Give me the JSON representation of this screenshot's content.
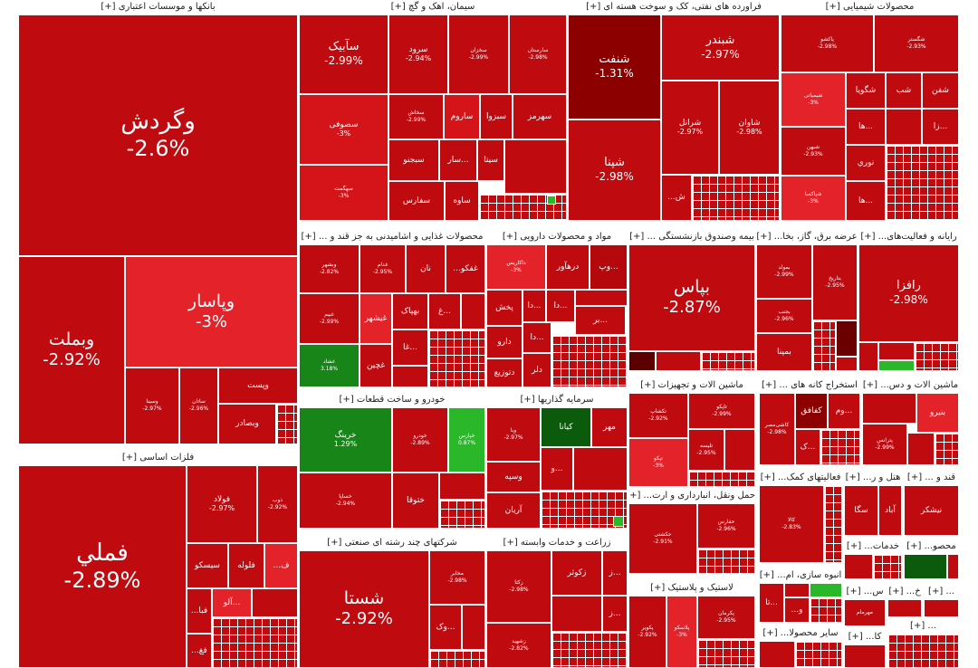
{
  "sectors": [
    {
      "title": "بانکها و موسسات اعتباری [+]",
      "tiles": [
        {
          "name": "وگردش",
          "pct": "-2.6%"
        },
        {
          "name": "وبملت",
          "pct": "-2.92%"
        },
        {
          "name": "وپاسار",
          "pct": "-3%"
        },
        {
          "name": "وسینا",
          "pct": "-2.97%"
        },
        {
          "name": "ساتان",
          "pct": "-2.96%"
        },
        {
          "name": "وپست",
          "pct": ""
        },
        {
          "name": "وبصادر",
          "pct": ""
        }
      ]
    },
    {
      "title": "فلزات اساسی [+]",
      "tiles": [
        {
          "name": "فملي",
          "pct": "-2.89%"
        },
        {
          "name": "فولاد",
          "pct": "-2.97%"
        },
        {
          "name": "ذوب",
          "pct": "-2.92%"
        },
        {
          "name": "فلوله",
          "pct": ""
        },
        {
          "name": "سیسکو",
          "pct": ""
        },
        {
          "name": "ف...",
          "pct": ""
        },
        {
          "name": "...آلو",
          "pct": ""
        },
        {
          "name": "فبا...",
          "pct": ""
        },
        {
          "name": "فغ...",
          "pct": ""
        }
      ]
    },
    {
      "title": "سیمان، اهک و گچ [+]",
      "tiles": [
        {
          "name": "سآبیک",
          "pct": "-2.99%"
        },
        {
          "name": "سرود",
          "pct": "-2.94%"
        },
        {
          "name": "سخزان",
          "pct": "-2.99%"
        },
        {
          "name": "سارستان",
          "pct": "-2.98%"
        },
        {
          "name": "سصوفی",
          "pct": "-3%"
        },
        {
          "name": "سخاش",
          "pct": "-2.99%"
        },
        {
          "name": "ساروم",
          "pct": ""
        },
        {
          "name": "سبزوا",
          "pct": ""
        },
        {
          "name": "سهرمز",
          "pct": ""
        },
        {
          "name": "سهگمت",
          "pct": "-3%"
        },
        {
          "name": "سبجنو",
          "pct": ""
        },
        {
          "name": "...سار",
          "pct": ""
        },
        {
          "name": "سیتا",
          "pct": ""
        },
        {
          "name": "سفارس",
          "pct": ""
        },
        {
          "name": "ساوه",
          "pct": ""
        }
      ]
    },
    {
      "title": "فراورده های نفتی، کک و سوخت هسته ای [+]",
      "tiles": [
        {
          "name": "شنفت",
          "pct": "-1.31%"
        },
        {
          "name": "شبندر",
          "pct": "-2.97%"
        },
        {
          "name": "شپنا",
          "pct": "-2.98%"
        },
        {
          "name": "شرانل",
          "pct": "-2.97%"
        },
        {
          "name": "شاوان",
          "pct": "-2.98%"
        },
        {
          "name": "ش...",
          "pct": ""
        }
      ]
    },
    {
      "title": "محصولات شیمیایی [+]",
      "tiles": [
        {
          "name": "پاکشو",
          "pct": "-2.98%"
        },
        {
          "name": "شگستر",
          "pct": "-2.93%"
        },
        {
          "name": "شیمیاتی",
          "pct": "-3%"
        },
        {
          "name": "شگویا",
          "pct": ""
        },
        {
          "name": "شب",
          "pct": ""
        },
        {
          "name": "شفن",
          "pct": ""
        },
        {
          "name": "...زا",
          "pct": ""
        },
        {
          "name": "...ها",
          "pct": ""
        },
        {
          "name": "نوري",
          "pct": ""
        },
        {
          "name": "...ها",
          "pct": ""
        },
        {
          "name": "شبهن",
          "pct": "-2.93%"
        },
        {
          "name": "شپاکسا",
          "pct": "-3%"
        }
      ]
    },
    {
      "title": "محصولات غذایی و اشامیدنی به جز قند و ... [+]",
      "tiles": [
        {
          "name": "وبشهر",
          "pct": "-2.82%"
        },
        {
          "name": "غدام",
          "pct": "-2.95%"
        },
        {
          "name": "نان",
          "pct": ""
        },
        {
          "name": "غفکو...",
          "pct": ""
        },
        {
          "name": "غبیم",
          "pct": "-2.99%"
        },
        {
          "name": "غیشهر",
          "pct": ""
        },
        {
          "name": "بهپاک",
          "pct": ""
        },
        {
          "name": "...غ",
          "pct": ""
        },
        {
          "name": "غشاد",
          "pct": "3.18%"
        },
        {
          "name": "غچین",
          "pct": ""
        },
        {
          "name": "...غا",
          "pct": ""
        }
      ]
    },
    {
      "title": "مواد و محصولات دارویی [+]",
      "tiles": [
        {
          "name": "داکاریس",
          "pct": "-3%"
        },
        {
          "name": "درهآور",
          "pct": ""
        },
        {
          "name": "...وپ",
          "pct": ""
        },
        {
          "name": "...دا",
          "pct": ""
        },
        {
          "name": "...بر",
          "pct": ""
        },
        {
          "name": "پخش",
          "pct": ""
        },
        {
          "name": "...دا",
          "pct": ""
        },
        {
          "name": "دلر",
          "pct": ""
        },
        {
          "name": "دارو",
          "pct": ""
        },
        {
          "name": "دتوزیع",
          "pct": ""
        },
        {
          "name": "...دا",
          "pct": ""
        }
      ]
    },
    {
      "title": "بیمه وصندوق بازنشستگی ... [+]",
      "tiles": [
        {
          "name": "بپاس",
          "pct": "-2.87%"
        }
      ]
    },
    {
      "title": "عرضه برق، گاز، بخا... [+]",
      "tiles": [
        {
          "name": "بمولد",
          "pct": "-2.99%"
        },
        {
          "name": "بتاریخ",
          "pct": "-2.95%"
        },
        {
          "name": "بجنب",
          "pct": "-2.96%"
        },
        {
          "name": "بمپنا",
          "pct": ""
        }
      ]
    },
    {
      "title": "رایانه و فعالیت‌های... [+]",
      "tiles": [
        {
          "name": "رافزا",
          "pct": "-2.98%"
        }
      ]
    },
    {
      "title": "خودرو و ساخت قطعات [+]",
      "tiles": [
        {
          "name": "خرینگ",
          "pct": "1.29%"
        },
        {
          "name": "خودرو",
          "pct": "-2.89%"
        },
        {
          "name": "خپارس",
          "pct": "0.87%"
        },
        {
          "name": "خساپا",
          "pct": "-2.94%"
        },
        {
          "name": "ختوقا",
          "pct": ""
        }
      ]
    },
    {
      "title": "سرمایه گذاریها [+]",
      "tiles": [
        {
          "name": "کیانا",
          "pct": ""
        },
        {
          "name": "مهر",
          "pct": ""
        },
        {
          "name": "وبا",
          "pct": "-2.97%"
        },
        {
          "name": "...و",
          "pct": ""
        },
        {
          "name": "وسپه",
          "pct": ""
        },
        {
          "name": "آریان",
          "pct": ""
        }
      ]
    },
    {
      "title": "ماشین الات و تجهیزات [+]",
      "tiles": [
        {
          "name": "تکشاپ",
          "pct": "-2.92%"
        },
        {
          "name": "تاپکو",
          "pct": "-2.99%"
        },
        {
          "name": "تپکو",
          "pct": "-3%"
        },
        {
          "name": "تلیسه",
          "pct": "-2.95%"
        }
      ]
    },
    {
      "title": "استخراج کانه های ... [+]",
      "tiles": [
        {
          "name": "کاشی‌مصر",
          "pct": "-2.98%"
        },
        {
          "name": "کفافق",
          "pct": ""
        },
        {
          "name": "...وم",
          "pct": ""
        },
        {
          "name": "...ک",
          "pct": ""
        }
      ]
    },
    {
      "title": "ماشین الات و دس... [+]",
      "tiles": [
        {
          "name": "بنیرو",
          "pct": ""
        },
        {
          "name": "پترانس",
          "pct": "-2.99%"
        }
      ]
    },
    {
      "title": "شرکتهای چند رشته ای صنعتی [+]",
      "tiles": [
        {
          "name": "شستا",
          "pct": "-2.92%"
        },
        {
          "name": "مخابر",
          "pct": "-2.98%"
        },
        {
          "name": "...وک",
          "pct": ""
        }
      ]
    },
    {
      "title": "زراعت و خدمات وابسته [+]",
      "tiles": [
        {
          "name": "زکثا",
          "pct": "-2.98%"
        },
        {
          "name": "زکوثر",
          "pct": ""
        },
        {
          "name": "...ز",
          "pct": ""
        },
        {
          "name": "زشهید",
          "pct": "-2.82%"
        },
        {
          "name": "...ز",
          "pct": ""
        }
      ]
    },
    {
      "title": "حمل ونقل، انبارداری و ارت... [+]",
      "tiles": [
        {
          "name": "حکشتی",
          "pct": "-2.91%"
        },
        {
          "name": "حفارس",
          "pct": "-2.96%"
        }
      ]
    },
    {
      "title": "لاستیک و پلاستیک [+]",
      "tiles": [
        {
          "name": "پکویر",
          "pct": "-2.92%"
        },
        {
          "name": "پلاسکو",
          "pct": "-3%"
        },
        {
          "name": "پکرمان",
          "pct": "-2.95%"
        }
      ]
    },
    {
      "title": "فعالیتهای کمک... [+]",
      "tiles": [
        {
          "name": "کالا",
          "pct": "-2.83%"
        }
      ]
    },
    {
      "title": "انبوه سازی، ام... [+]",
      "tiles": [
        {
          "name": "...تا",
          "pct": ""
        },
        {
          "name": "و...",
          "pct": ""
        }
      ]
    },
    {
      "title": "ساير محصولا... [+]",
      "tiles": []
    },
    {
      "title": "هتل و ر... [+]",
      "tiles": [
        {
          "name": "سگا",
          "pct": ""
        },
        {
          "name": "آباد",
          "pct": ""
        }
      ]
    },
    {
      "title": "قند و ... [+]",
      "tiles": [
        {
          "name": "نیشکر",
          "pct": ""
        }
      ]
    },
    {
      "title": "خدمات... [+]",
      "tiles": []
    },
    {
      "title": "محصو... [+]",
      "tiles": []
    },
    {
      "title": "س... [+]",
      "tiles": [
        {
          "name": "مهرمام",
          "pct": ""
        }
      ]
    },
    {
      "title": "خ... [+]",
      "tiles": []
    },
    {
      "title": "... [+]",
      "tiles": []
    },
    {
      "title": "کا... [+]",
      "tiles": []
    },
    {
      "title": "... [+]",
      "tiles": []
    }
  ]
}
